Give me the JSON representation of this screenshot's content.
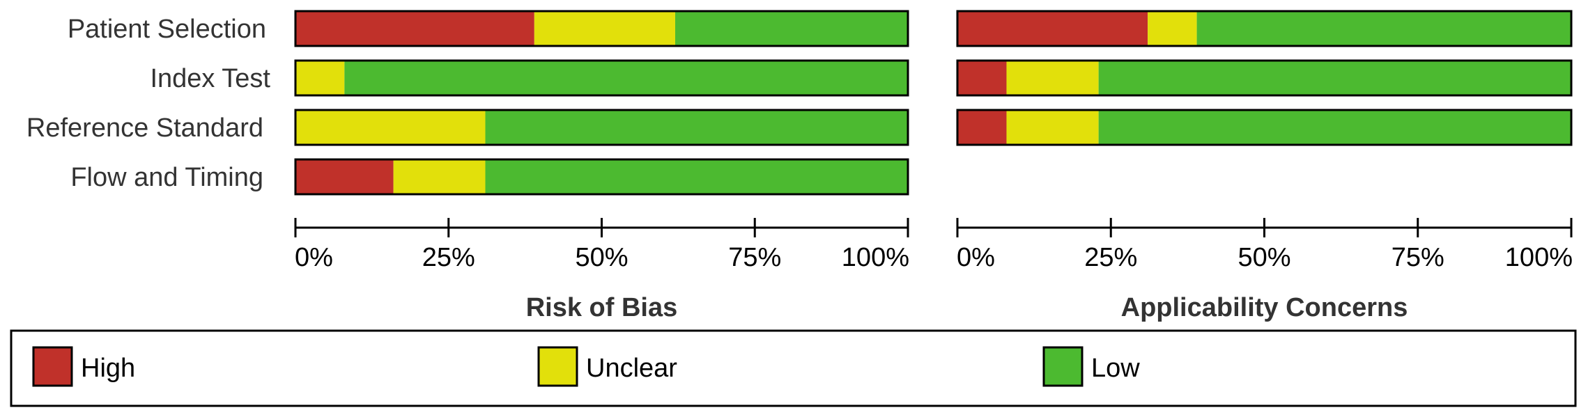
{
  "chart_data": {
    "type": "bar",
    "stacked": true,
    "orientation": "horizontal",
    "categories": [
      "Patient Selection",
      "Index Test",
      "Reference Standard",
      "Flow and Timing"
    ],
    "x_tick_labels": [
      "0%",
      "25%",
      "50%",
      "75%",
      "100%"
    ],
    "xlim": [
      0,
      100
    ],
    "panels": [
      {
        "title": "Risk of Bias",
        "rows": [
          {
            "category": "Patient Selection",
            "High": 39,
            "Unclear": 23,
            "Low": 38
          },
          {
            "category": "Index Test",
            "High": 0,
            "Unclear": 8,
            "Low": 92
          },
          {
            "category": "Reference Standard",
            "High": 0,
            "Unclear": 31,
            "Low": 69
          },
          {
            "category": "Flow and Timing",
            "High": 16,
            "Unclear": 15,
            "Low": 69
          }
        ]
      },
      {
        "title": "Applicability Concerns",
        "rows": [
          {
            "category": "Patient Selection",
            "High": 31,
            "Unclear": 8,
            "Low": 61
          },
          {
            "category": "Index Test",
            "High": 8,
            "Unclear": 15,
            "Low": 77
          },
          {
            "category": "Reference Standard",
            "High": 8,
            "Unclear": 15,
            "Low": 77
          }
        ]
      }
    ],
    "legend": {
      "placement": "bottom",
      "items": [
        {
          "name": "High",
          "color": "#c0312a"
        },
        {
          "name": "Unclear",
          "color": "#e2e00b"
        },
        {
          "name": "Low",
          "color": "#4cba30"
        }
      ]
    }
  }
}
